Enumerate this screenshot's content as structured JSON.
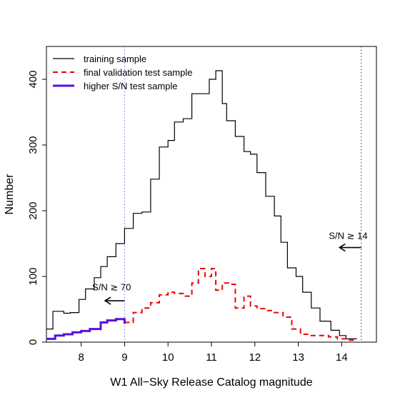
{
  "chart_data": {
    "type": "line",
    "xlabel": "W1 All−Sky Release Catalog magnitude",
    "ylabel": "Number",
    "xlim": [
      7.2,
      14.8
    ],
    "ylim": [
      0,
      450
    ],
    "xticks": [
      8,
      9,
      10,
      11,
      12,
      13,
      14
    ],
    "yticks": [
      0,
      100,
      200,
      300,
      400
    ],
    "grid": false,
    "legend_position": "top-left",
    "series": [
      {
        "name": "training sample",
        "color": "#000000",
        "style": "solid",
        "width": 1.2,
        "bin_edges": [
          7.2,
          7.35,
          7.6,
          7.75,
          7.95,
          8.1,
          8.3,
          8.45,
          8.6,
          8.8,
          9.0,
          9.2,
          9.4,
          9.6,
          9.8,
          10.0,
          10.15,
          10.35,
          10.55,
          10.75,
          10.95,
          11.1,
          11.25,
          11.35,
          11.55,
          11.75,
          11.9,
          12.05,
          12.25,
          12.45,
          12.6,
          12.75,
          12.95,
          13.1,
          13.3,
          13.5,
          13.75,
          13.95,
          14.1,
          14.35
        ],
        "values": [
          20,
          47,
          44,
          45,
          65,
          81,
          98,
          115,
          130,
          150,
          173,
          196,
          198,
          248,
          297,
          307,
          335,
          340,
          378,
          378,
          400,
          413,
          363,
          337,
          313,
          290,
          286,
          258,
          222,
          192,
          152,
          113,
          100,
          76,
          52,
          32,
          18,
          10,
          5
        ]
      },
      {
        "name": "final validation test sample",
        "color": "#ee0000",
        "style": "dashed",
        "width": 2.0,
        "bin_edges": [
          9.0,
          9.2,
          9.4,
          9.6,
          9.8,
          10.0,
          10.15,
          10.35,
          10.55,
          10.7,
          10.85,
          11.0,
          11.1,
          11.25,
          11.4,
          11.55,
          11.75,
          11.9,
          12.05,
          12.25,
          12.45,
          12.65,
          12.85,
          13.05,
          13.25,
          13.45,
          13.7,
          13.9,
          14.1,
          14.35
        ],
        "values": [
          30,
          45,
          52,
          60,
          72,
          76,
          74,
          70,
          90,
          112,
          100,
          112,
          79,
          90,
          88,
          52,
          70,
          55,
          51,
          48,
          45,
          38,
          20,
          12,
          10,
          10,
          8,
          5,
          3
        ]
      },
      {
        "name": "higher S/N test sample",
        "color": "#5511dd",
        "style": "solid",
        "width": 3.0,
        "bin_edges": [
          7.2,
          7.4,
          7.6,
          7.8,
          8.0,
          8.2,
          8.45,
          8.6,
          8.8,
          9.0
        ],
        "values": [
          5,
          10,
          12,
          15,
          17,
          20,
          30,
          33,
          35,
          28
        ]
      }
    ],
    "reference_lines": [
      {
        "x": 9.0,
        "color": "#6666ff",
        "style": "dotted"
      },
      {
        "x": 14.45,
        "color": "#333333",
        "style": "dotted"
      }
    ],
    "annotations": [
      {
        "text": "S/N ≳ 70",
        "x": 8.7,
        "y": 79,
        "arrow_from": 9.0,
        "arrow_to": 8.55,
        "arrow_y": 63
      },
      {
        "text": "S/N ≳ 14",
        "x": 14.15,
        "y": 157,
        "arrow_from": 14.45,
        "arrow_to": 13.95,
        "arrow_y": 144
      }
    ]
  }
}
